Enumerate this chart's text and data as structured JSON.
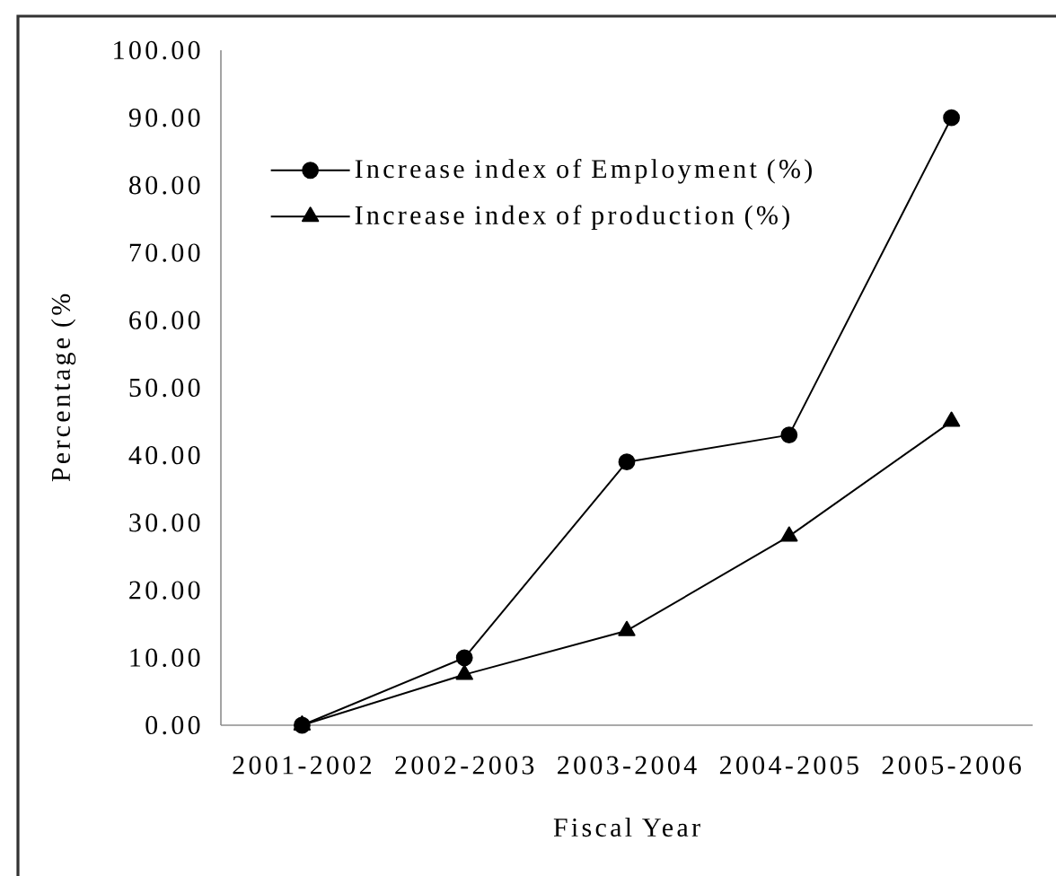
{
  "chart_data": {
    "type": "line",
    "xlabel": "Fiscal Year",
    "ylabel": "Percentage (%",
    "categories": [
      "2001-2002",
      "2002-2003",
      "2003-2004",
      "2004-2005",
      "2005-2006"
    ],
    "series": [
      {
        "name": "Increase index of Employment (%)",
        "color": "#000000",
        "marker": "circle",
        "values": [
          0,
          10,
          39,
          43,
          90
        ]
      },
      {
        "name": "Increase index of production (%)",
        "color": "#000000",
        "marker": "triangle",
        "values": [
          0,
          7.5,
          14,
          28,
          45
        ]
      }
    ],
    "ylim": [
      0,
      100
    ],
    "yticks": [
      {
        "value": 0,
        "label": "0.00"
      },
      {
        "value": 10,
        "label": "10.00"
      },
      {
        "value": 20,
        "label": "20.00"
      },
      {
        "value": 30,
        "label": "30.00"
      },
      {
        "value": 40,
        "label": "40.00"
      },
      {
        "value": 50,
        "label": "50.00"
      },
      {
        "value": 60,
        "label": "60.00"
      },
      {
        "value": 70,
        "label": "70.00"
      },
      {
        "value": 80,
        "label": "80.00"
      },
      {
        "value": 90,
        "label": "90.00"
      },
      {
        "value": 100,
        "label": "100.00"
      }
    ],
    "legend": "top left",
    "line_style": "solid"
  }
}
